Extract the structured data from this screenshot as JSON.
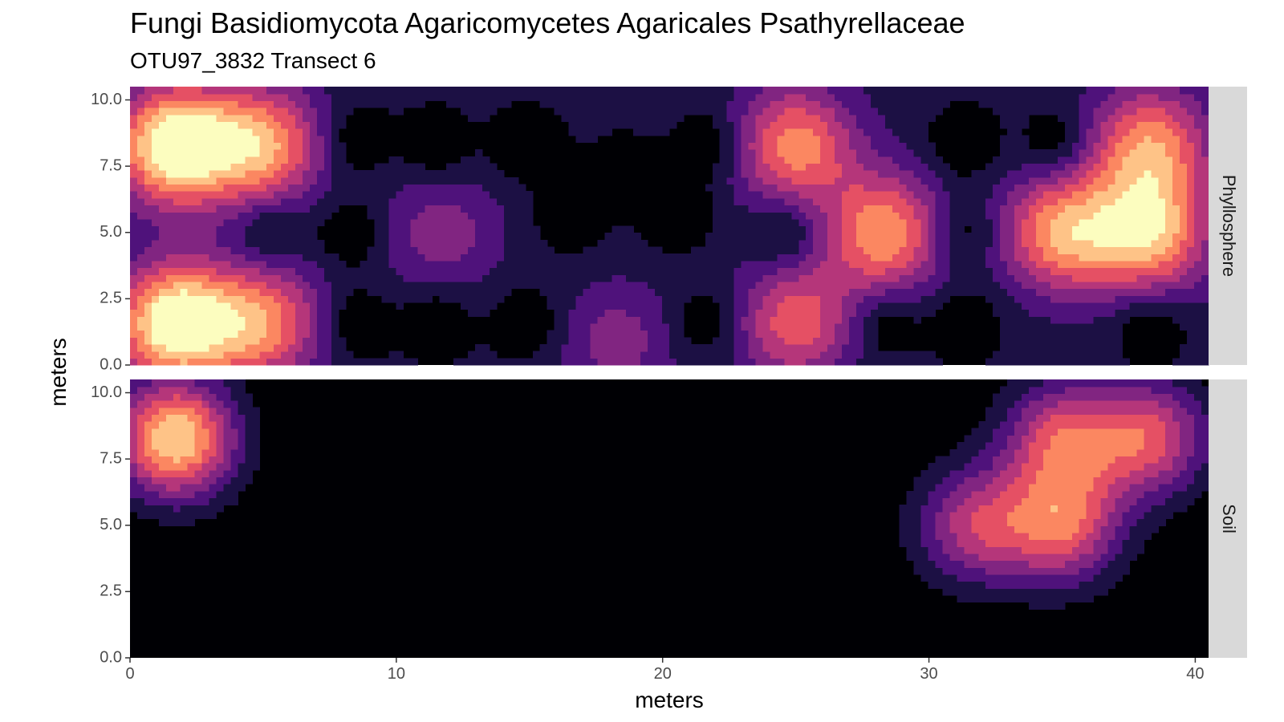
{
  "chart_data": {
    "type": "heatmap",
    "title": "Fungi Basidiomycota Agaricomycetes Agaricales Psathyrellaceae",
    "subtitle": "OTU97_3832 Transect 6",
    "xlabel": "meters",
    "ylabel": "meters",
    "xlim": [
      0,
      40.5
    ],
    "ylim": [
      0,
      10.5
    ],
    "x_ticks": [
      0,
      10,
      20,
      30,
      40
    ],
    "y_ticks": [
      0.0,
      2.5,
      5.0,
      7.5,
      10.0
    ],
    "x_tick_labels": [
      "0",
      "10",
      "20",
      "30",
      "40"
    ],
    "y_tick_labels": [
      "0.0",
      "2.5",
      "5.0",
      "7.5",
      "10.0"
    ],
    "colormap": "magma",
    "level_colors": [
      "#000004",
      "#1c1044",
      "#4f127b",
      "#812581",
      "#b5367a",
      "#e55064",
      "#fb8761",
      "#fec387",
      "#fcfdbf"
    ],
    "grid": false,
    "legend": "none",
    "panels": [
      {
        "facet": "Phyllosphere",
        "peaks": [
          {
            "x": 1.7,
            "y": 8.3,
            "v": 8.0
          },
          {
            "x": 5.0,
            "y": 8.3,
            "v": 5.6
          },
          {
            "x": 1.7,
            "y": 1.6,
            "v": 8.0
          },
          {
            "x": 5.0,
            "y": 1.6,
            "v": 5.0
          },
          {
            "x": 11.7,
            "y": 5.0,
            "v": 2.3
          },
          {
            "x": 18.3,
            "y": 0.9,
            "v": 2.2
          },
          {
            "x": 25.0,
            "y": 8.3,
            "v": 5.2
          },
          {
            "x": 25.0,
            "y": 1.6,
            "v": 4.3
          },
          {
            "x": 28.3,
            "y": 5.0,
            "v": 5.5
          },
          {
            "x": 35.0,
            "y": 5.0,
            "v": 5.6
          },
          {
            "x": 38.3,
            "y": 5.0,
            "v": 6.0
          },
          {
            "x": 38.3,
            "y": 8.3,
            "v": 5.2
          }
        ],
        "background": 1.3,
        "holes": [
          {
            "x": 5.2,
            "y": 5.0
          },
          {
            "x": 8.5,
            "y": 8.5
          },
          {
            "x": 8.3,
            "y": 5.0
          },
          {
            "x": 8.5,
            "y": 1.6
          },
          {
            "x": 11.5,
            "y": 8.3
          },
          {
            "x": 11.5,
            "y": 1.6
          },
          {
            "x": 14.9,
            "y": 1.6
          },
          {
            "x": 14.9,
            "y": 8.3
          },
          {
            "x": 16.5,
            "y": 5.7
          },
          {
            "x": 18.5,
            "y": 7.2
          },
          {
            "x": 20.5,
            "y": 5.7
          },
          {
            "x": 21.8,
            "y": 8.3
          },
          {
            "x": 21.6,
            "y": 1.6
          },
          {
            "x": 24.7,
            "y": 5.0
          },
          {
            "x": 28.3,
            "y": 1.6
          },
          {
            "x": 31.3,
            "y": 8.3
          },
          {
            "x": 31.3,
            "y": 5.0
          },
          {
            "x": 31.3,
            "y": 1.6
          },
          {
            "x": 34.8,
            "y": 8.3
          },
          {
            "x": 38.3,
            "y": 1.5
          }
        ]
      },
      {
        "facet": "Soil",
        "peaks": [
          {
            "x": 1.7,
            "y": 8.3,
            "v": 8.0
          },
          {
            "x": 35.0,
            "y": 8.3,
            "v": 5.0
          },
          {
            "x": 35.0,
            "y": 5.0,
            "v": 5.5
          },
          {
            "x": 38.3,
            "y": 8.3,
            "v": 5.2
          },
          {
            "x": 31.7,
            "y": 5.0,
            "v": 4.4
          }
        ],
        "background": 0.0,
        "holes": []
      }
    ]
  }
}
